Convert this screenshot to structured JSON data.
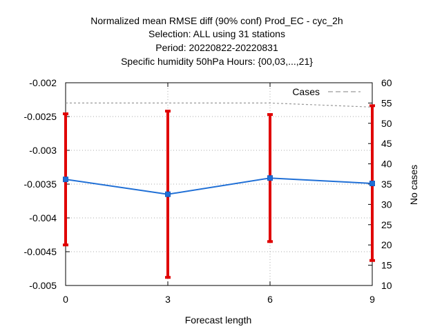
{
  "chart_data": {
    "type": "line",
    "title_lines": [
      "Normalized mean RMSE diff (90% conf) Prod_EC - cyc_2h",
      "Selection: ALL using    31 stations",
      "Period: 20220822-20220831",
      "Specific humidity 50hPa   Hours: {00,03,...,21}"
    ],
    "xlabel": "Forecast length",
    "ylabel": "",
    "y2label": "No cases",
    "x": [
      0,
      3,
      6,
      9
    ],
    "xlim": [
      0,
      9
    ],
    "ylim": [
      -0.005,
      -0.002
    ],
    "y2lim": [
      10,
      60
    ],
    "x_ticks": [
      "0",
      "3",
      "6",
      "9"
    ],
    "y_ticks": [
      "-0.002",
      "-0.0025",
      "-0.003",
      "-0.0035",
      "-0.004",
      "-0.0045",
      "-0.005"
    ],
    "y2_ticks": [
      "60",
      "55",
      "50",
      "45",
      "40",
      "35",
      "30",
      "25",
      "20",
      "15",
      "10"
    ],
    "grid": true,
    "legend_position": "top-right",
    "series": [
      {
        "name": "",
        "axis": "left",
        "style": "line-with-errorbars",
        "color": "#1f6fd6",
        "errorbar_color": "#e00000",
        "values": [
          -0.00343,
          -0.00365,
          -0.00341,
          -0.00349
        ],
        "lower": [
          -0.0044,
          -0.00488,
          -0.00435,
          -0.00463
        ],
        "upper": [
          -0.00246,
          -0.00242,
          -0.00247,
          -0.00234
        ]
      },
      {
        "name": "Cases",
        "axis": "right",
        "style": "dashed",
        "color": "#999999",
        "values": [
          55,
          55,
          55,
          54
        ]
      }
    ]
  }
}
